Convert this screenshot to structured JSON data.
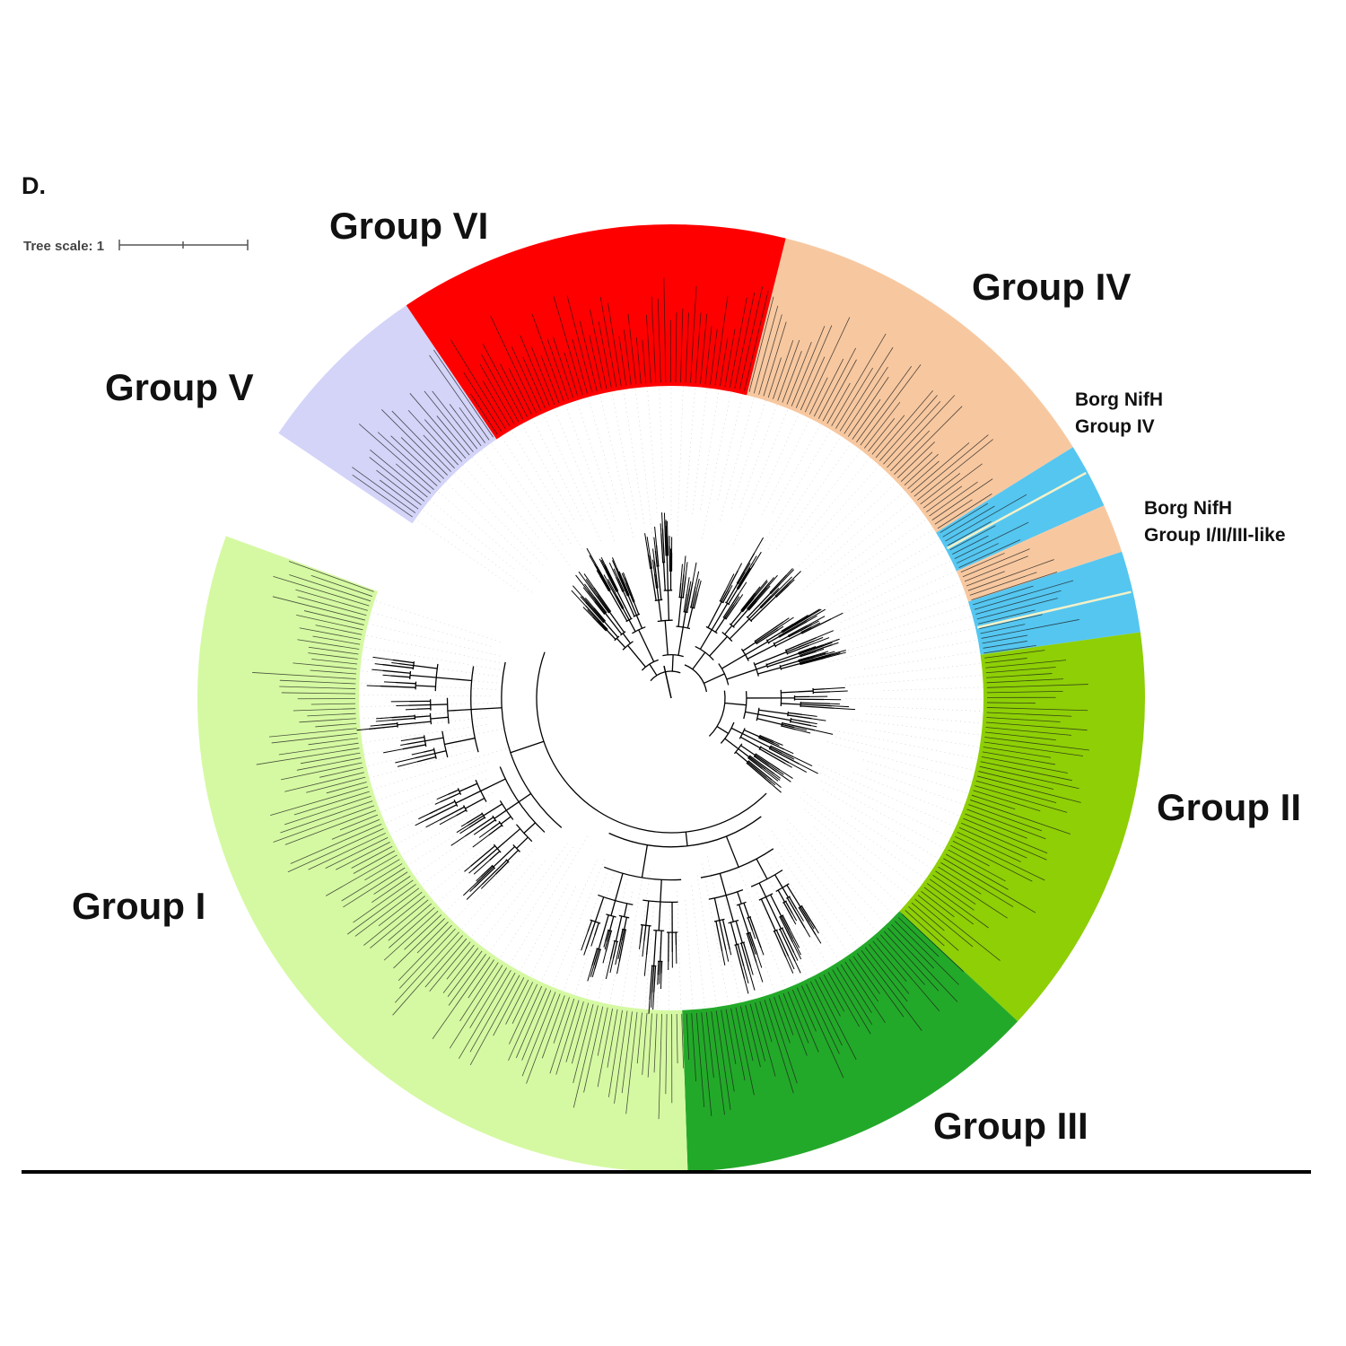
{
  "panel_label": "D.",
  "tree_scale": {
    "label": "Tree scale: 1"
  },
  "groups": [
    {
      "id": "group-vi",
      "label": "Group VI",
      "color": "#ff0000"
    },
    {
      "id": "group-iv",
      "label": "Group IV",
      "color": "#f7c8a0"
    },
    {
      "id": "group-v",
      "label": "Group V",
      "color": "#d4d4f9"
    },
    {
      "id": "group-i",
      "label": "Group I",
      "color": "#d5f9a2"
    },
    {
      "id": "group-ii",
      "label": "Group II",
      "color": "#8ecf06"
    },
    {
      "id": "group-iii",
      "label": "Group III",
      "color": "#23a929"
    }
  ],
  "borg_clades": [
    {
      "id": "borg-group-iv",
      "line1": "Borg NifH",
      "line2": "Group IV",
      "color": "#55c6f0"
    },
    {
      "id": "borg-group-i-ii-iii-like",
      "line1": "Borg NifH",
      "line2": "Group I/II/III-like",
      "color": "#55c6f0"
    }
  ]
}
